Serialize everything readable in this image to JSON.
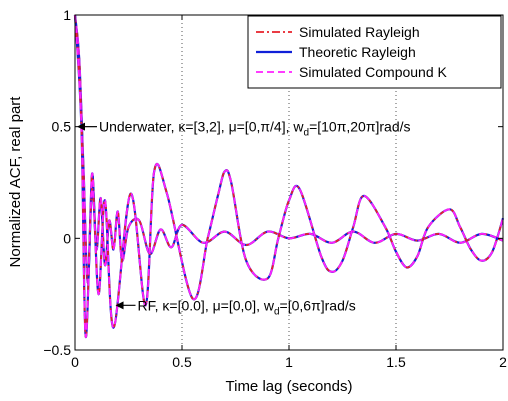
{
  "chart_data": {
    "type": "line",
    "xlabel": "Time lag (seconds)",
    "ylabel": "Normalized ACF, real part",
    "xlim": [
      0,
      2
    ],
    "ylim": [
      -0.5,
      1
    ],
    "xticks": [
      0,
      0.5,
      1,
      1.5,
      2
    ],
    "yticks": [
      -0.5,
      0,
      0.5,
      1
    ],
    "xtick_labels": [
      "0",
      "0.5",
      "1",
      "1.5",
      "2"
    ],
    "ytick_labels": [
      "−0.5",
      "0",
      "0.5",
      "1"
    ],
    "grid": "vertical dotted",
    "legend_position": "top-right",
    "series": [
      {
        "name": "Simulated Rayleigh",
        "color": "#e8202a",
        "style": "dashdot"
      },
      {
        "name": "Theoretic Rayleigh",
        "color": "#1020d8",
        "style": "solid"
      },
      {
        "name": "Simulated Compound K",
        "color": "#ff20ff",
        "style": "dashed"
      }
    ],
    "curves": [
      {
        "scenario": "underwater",
        "x": [
          0,
          0.02,
          0.04,
          0.06,
          0.08,
          0.1,
          0.12,
          0.14,
          0.16,
          0.18,
          0.2,
          0.22,
          0.25,
          0.3,
          0.35,
          0.4,
          0.45,
          0.5,
          0.6,
          0.7,
          0.8,
          0.9,
          1.0,
          1.1,
          1.2,
          1.3,
          1.4,
          1.5,
          1.6,
          1.7,
          1.8,
          1.9,
          2.0
        ],
        "y": [
          1.0,
          0.8,
          0.3,
          -0.2,
          0.29,
          -0.05,
          0.18,
          -0.12,
          0.08,
          -0.05,
          0.12,
          -0.1,
          0.05,
          0.08,
          -0.07,
          0.04,
          -0.04,
          0.06,
          -0.02,
          0.03,
          -0.03,
          0.03,
          0.0,
          0.02,
          -0.02,
          0.03,
          -0.02,
          0.02,
          -0.01,
          0.02,
          -0.02,
          0.02,
          -0.01
        ]
      },
      {
        "scenario": "rf",
        "x": [
          0,
          0.03,
          0.05,
          0.08,
          0.11,
          0.14,
          0.18,
          0.26,
          0.33,
          0.37,
          0.43,
          0.55,
          0.62,
          0.67,
          0.7,
          0.73,
          0.8,
          0.9,
          0.95,
          1.0,
          1.05,
          1.15,
          1.2,
          1.25,
          1.3,
          1.35,
          1.45,
          1.5,
          1.55,
          1.6,
          1.65,
          1.75,
          1.8,
          1.85,
          1.9,
          1.95,
          2.0
        ],
        "y": [
          1.0,
          0.5,
          -0.44,
          0.22,
          -0.25,
          0.17,
          -0.4,
          0.2,
          -0.3,
          0.3,
          0.2,
          -0.27,
          0.0,
          0.2,
          0.3,
          0.25,
          -0.1,
          -0.18,
          0.0,
          0.17,
          0.22,
          -0.08,
          -0.15,
          -0.1,
          0.05,
          0.19,
          0.05,
          -0.06,
          -0.13,
          -0.08,
          0.05,
          0.13,
          0.05,
          -0.05,
          -0.1,
          -0.06,
          0.09
        ]
      }
    ],
    "annotations": [
      {
        "text": "Underwater, κ=[3,2], μ=[0,π/4], w",
        "sub": "d",
        "tail": "=[10π,20π]rad/s",
        "x": 0,
        "y": 0.5
      },
      {
        "text": "RF, κ=[0.0], μ=[0,0], w",
        "sub": "d",
        "tail": "=[0,6π]rad/s",
        "x": 0.18,
        "y": -0.3
      }
    ]
  }
}
